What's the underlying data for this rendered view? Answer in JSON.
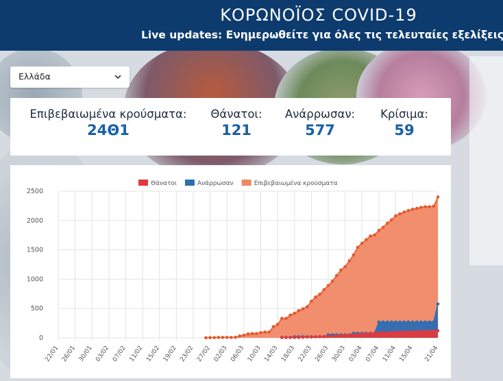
{
  "header": {
    "title": "ΚΟΡΩΝΟΪΟΣ COVID-19",
    "subtitle": "Live updates: Ενημερωθείτε για όλες τις τελευταίες εξελίξεις"
  },
  "country_select": {
    "value": "Ελλάδα"
  },
  "stats": [
    {
      "label": "Επιβεβαιωμένα κρούσματα:",
      "value": "24Θ1"
    },
    {
      "label": "Θάνατοι:",
      "value": "121"
    },
    {
      "label": "Ανάρρωσαν:",
      "value": "577"
    },
    {
      "label": "Κρίσιμα:",
      "value": "59"
    }
  ],
  "colors": {
    "header_bg": "#0d3b6e",
    "deaths": "#e03a3e",
    "recovered": "#2d6db3",
    "confirmed_fill": "#ef8866",
    "confirmed_line": "#e8572b"
  },
  "chart_data": {
    "type": "area",
    "ylim": [
      0,
      2500
    ],
    "yticks": [
      "0",
      "500",
      "1000",
      "1500",
      "2000",
      "2500"
    ],
    "xticks": [
      "22/01",
      "26/01",
      "30/01",
      "03/02",
      "07/02",
      "11/02",
      "15/02",
      "19/02",
      "23/02",
      "27/02",
      "02/03",
      "06/03",
      "10/03",
      "14/03",
      "18/03",
      "22/03",
      "26/03",
      "30/03",
      "03/04",
      "07/04",
      "11/04",
      "15/04",
      "21/04"
    ],
    "series": [
      {
        "name": "Θάνατοι",
        "x": [
          "15/03",
          "16/03",
          "17/03",
          "18/03",
          "19/03",
          "20/03",
          "21/03",
          "22/03",
          "23/03",
          "24/03",
          "25/03",
          "26/03",
          "27/03",
          "28/03",
          "29/03",
          "30/03",
          "31/03",
          "01/04",
          "02/04",
          "03/04",
          "04/04",
          "05/04",
          "06/04",
          "07/04",
          "08/04",
          "09/04",
          "10/04",
          "11/04",
          "12/04",
          "13/04",
          "14/04",
          "15/04",
          "16/04",
          "17/04",
          "18/04",
          "19/04",
          "20/04",
          "21/04"
        ],
        "values": [
          4,
          5,
          6,
          6,
          6,
          10,
          13,
          15,
          17,
          20,
          22,
          26,
          28,
          32,
          38,
          43,
          49,
          50,
          53,
          63,
          68,
          73,
          79,
          81,
          83,
          86,
          90,
          93,
          98,
          99,
          101,
          102,
          105,
          108,
          110,
          113,
          114,
          121
        ]
      },
      {
        "name": "Ανάρρωσαν",
        "x": [
          "15/03",
          "16/03",
          "17/03",
          "18/03",
          "19/03",
          "20/03",
          "21/03",
          "22/03",
          "23/03",
          "24/03",
          "25/03",
          "26/03",
          "27/03",
          "28/03",
          "29/03",
          "30/03",
          "31/03",
          "01/04",
          "02/04",
          "03/04",
          "04/04",
          "05/04",
          "06/04",
          "07/04",
          "08/04",
          "09/04",
          "10/04",
          "11/04",
          "12/04",
          "13/04",
          "14/04",
          "15/04",
          "16/04",
          "17/04",
          "18/04",
          "19/04",
          "20/04",
          "21/04"
        ],
        "values": [
          8,
          8,
          8,
          19,
          19,
          19,
          19,
          19,
          19,
          19,
          19,
          52,
          52,
          52,
          52,
          52,
          52,
          78,
          78,
          78,
          78,
          78,
          78,
          269,
          269,
          269,
          269,
          269,
          269,
          269,
          269,
          269,
          269,
          269,
          269,
          269,
          269,
          577
        ]
      },
      {
        "name": "Επιβεβαιωμένα κρούσματα",
        "x": [
          "26/02",
          "27/02",
          "28/02",
          "29/02",
          "01/03",
          "02/03",
          "03/03",
          "04/03",
          "05/03",
          "06/03",
          "07/03",
          "08/03",
          "09/03",
          "10/03",
          "11/03",
          "12/03",
          "13/03",
          "14/03",
          "15/03",
          "16/03",
          "17/03",
          "18/03",
          "19/03",
          "20/03",
          "21/03",
          "22/03",
          "23/03",
          "24/03",
          "25/03",
          "26/03",
          "27/03",
          "28/03",
          "29/03",
          "30/03",
          "31/03",
          "01/04",
          "02/04",
          "03/04",
          "04/04",
          "05/04",
          "06/04",
          "07/04",
          "08/04",
          "09/04",
          "10/04",
          "11/04",
          "12/04",
          "13/04",
          "14/04",
          "15/04",
          "16/04",
          "17/04",
          "18/04",
          "19/04",
          "20/04",
          "21/04"
        ],
        "values": [
          1,
          3,
          4,
          7,
          7,
          7,
          7,
          9,
          31,
          45,
          66,
          73,
          73,
          89,
          99,
          99,
          190,
          228,
          331,
          331,
          387,
          418,
          464,
          495,
          530,
          624,
          695,
          743,
          821,
          892,
          966,
          1061,
          1156,
          1212,
          1314,
          1415,
          1544,
          1613,
          1673,
          1735,
          1755,
          1832,
          1884,
          1955,
          2011,
          2081,
          2114,
          2145,
          2170,
          2192,
          2207,
          2224,
          2235,
          2235,
          2245,
          2401
        ]
      }
    ]
  }
}
